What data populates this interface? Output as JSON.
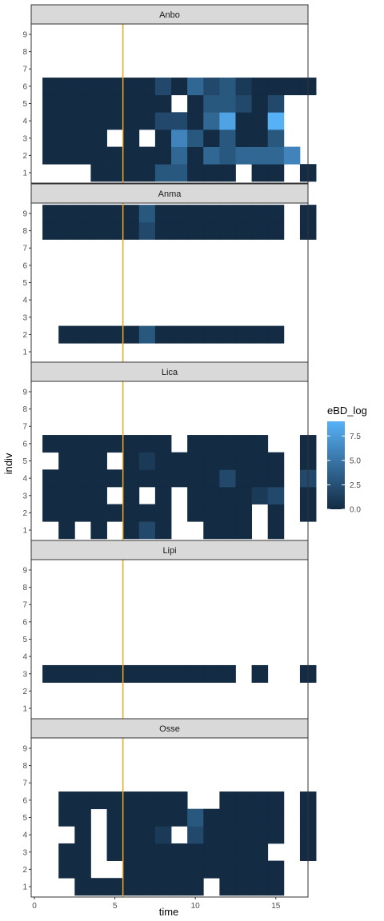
{
  "chart_data": {
    "type": "heatmap",
    "xlabel": "time",
    "ylabel": "indiv",
    "x_ticks": [
      "0",
      "5",
      "10",
      "15"
    ],
    "y_ticks": [
      "1",
      "2",
      "3",
      "4",
      "5",
      "6",
      "7",
      "8",
      "9"
    ],
    "xlim": [
      -0.2,
      17.0
    ],
    "ylim": [
      0.4,
      9.6
    ],
    "vline": {
      "x": 5.5,
      "color": "#f5a623"
    },
    "legend": {
      "title": "eBD_log",
      "ticks": [
        "0.0",
        "2.5",
        "5.0",
        "7.5"
      ],
      "tick_values": [
        0,
        2.5,
        5,
        7.5
      ],
      "range": [
        0,
        9
      ],
      "low_color": "#132b43",
      "high_color": "#56b1f7",
      "placement": "right"
    },
    "panels": [
      {
        "name": "Anbo",
        "rows": {
          "1": [
            null,
            null,
            null,
            0,
            0,
            0,
            0,
            3,
            3,
            0,
            0,
            0,
            null,
            0,
            0,
            null,
            0
          ],
          "2": [
            0,
            0,
            0,
            0,
            0,
            0,
            0,
            0,
            4,
            0,
            4,
            3,
            4,
            4,
            4,
            6,
            null
          ],
          "3": [
            0,
            0,
            0,
            0,
            null,
            0,
            null,
            0,
            6,
            3,
            0,
            3,
            0,
            0,
            3,
            null,
            null
          ],
          "4": [
            0,
            0,
            0,
            0,
            0,
            0,
            0,
            2,
            2,
            0,
            4,
            8,
            0,
            0,
            9,
            null,
            null
          ],
          "5": [
            0,
            0,
            0,
            0,
            0,
            0,
            0,
            0,
            null,
            0,
            3,
            3,
            2,
            0,
            2,
            null,
            null
          ],
          "6": [
            0,
            0,
            0,
            0,
            0,
            0,
            0,
            2,
            0,
            4,
            2,
            3,
            1,
            0,
            0,
            0,
            0
          ]
        }
      },
      {
        "name": "Anma",
        "rows": {
          "2": [
            null,
            0,
            0,
            0,
            0,
            0,
            3,
            0,
            0,
            0,
            0,
            0,
            0,
            0,
            0,
            null,
            null
          ],
          "8": [
            0,
            0,
            0,
            0,
            0,
            0,
            2,
            0,
            0,
            0,
            0,
            0,
            0,
            0,
            0,
            null,
            0
          ],
          "9": [
            0,
            0,
            0,
            0,
            0,
            0,
            3,
            0,
            0,
            0,
            0,
            0,
            0,
            0,
            0,
            null,
            0
          ]
        }
      },
      {
        "name": "Lica",
        "rows": {
          "1": [
            null,
            0,
            null,
            0,
            null,
            0,
            2,
            0,
            null,
            null,
            0,
            0,
            0,
            null,
            0,
            null,
            null
          ],
          "2": [
            0,
            0,
            0,
            0,
            0,
            0,
            0,
            0,
            null,
            0,
            0,
            0,
            0,
            null,
            0,
            null,
            0
          ],
          "3": [
            0,
            0,
            0,
            0,
            null,
            0,
            null,
            0,
            null,
            0,
            0,
            0,
            0,
            1,
            2,
            null,
            0
          ],
          "4": [
            0,
            0,
            0,
            0,
            0,
            0,
            0,
            0,
            0,
            0,
            0,
            2,
            0,
            0,
            0,
            null,
            2
          ],
          "5": [
            null,
            0,
            0,
            0,
            null,
            0,
            1,
            0,
            0,
            0,
            0,
            0,
            0,
            0,
            0,
            null,
            0
          ],
          "6": [
            0,
            0,
            0,
            0,
            0,
            0,
            0,
            0,
            null,
            0,
            0,
            0,
            0,
            0,
            null,
            null,
            0
          ]
        }
      },
      {
        "name": "Lipi",
        "rows": {
          "3": [
            0,
            0,
            0,
            0,
            0,
            0,
            0,
            0,
            0,
            0,
            0,
            0,
            null,
            0,
            null,
            null,
            0
          ]
        }
      },
      {
        "name": "Osse",
        "rows": {
          "1": [
            null,
            null,
            0,
            0,
            0,
            0,
            0,
            0,
            0,
            0,
            null,
            0,
            0,
            0,
            0,
            null,
            null
          ],
          "2": [
            null,
            0,
            0,
            null,
            null,
            0,
            0,
            0,
            0,
            0,
            0,
            0,
            0,
            0,
            0,
            null,
            null
          ],
          "3": [
            null,
            0,
            0,
            null,
            0,
            0,
            0,
            0,
            0,
            0,
            0,
            0,
            0,
            0,
            null,
            null,
            0
          ],
          "4": [
            null,
            null,
            0,
            null,
            0,
            0,
            0,
            1,
            null,
            2,
            0,
            0,
            0,
            0,
            0,
            null,
            0
          ],
          "5": [
            null,
            0,
            0,
            null,
            0,
            0,
            0,
            0,
            0,
            3,
            0,
            0,
            0,
            0,
            0,
            null,
            0
          ],
          "6": [
            null,
            0,
            0,
            0,
            0,
            0,
            0,
            0,
            0,
            null,
            null,
            0,
            0,
            0,
            0,
            null,
            0
          ]
        }
      }
    ]
  }
}
